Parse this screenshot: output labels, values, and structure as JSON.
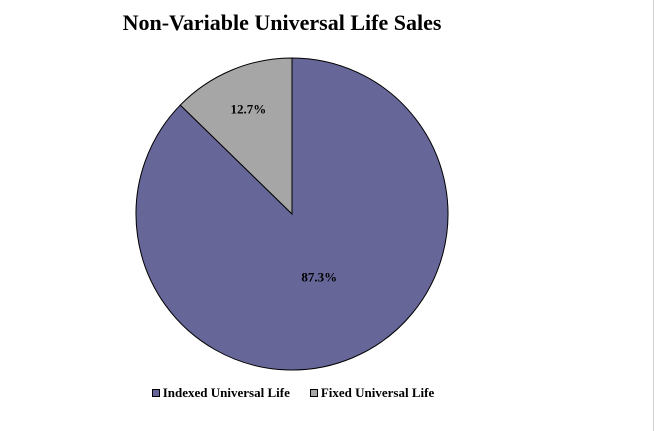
{
  "chart_data": {
    "type": "pie",
    "title": "Non-Variable Universal Life Sales",
    "slices": [
      {
        "name": "Indexed Universal Life",
        "value": 87.3,
        "label": "87.3%",
        "color": "#666699"
      },
      {
        "name": "Fixed Universal Life",
        "value": 12.7,
        "label": "12.7%",
        "color": "#a6a6a6"
      }
    ],
    "legend_position": "bottom"
  }
}
